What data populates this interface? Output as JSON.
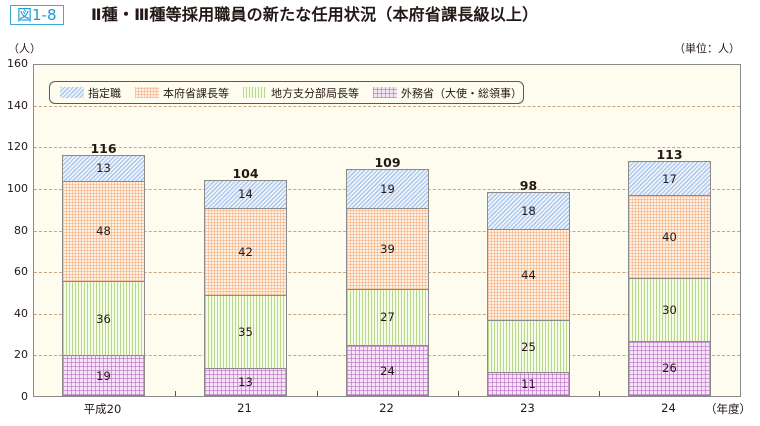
{
  "figure": {
    "label": "図1-8",
    "title": "Ⅱ種・Ⅲ種等採用職員の新たな任用状況（本府省課長級以上）",
    "y_unit": "（人）",
    "unit_note": "（単位：人）",
    "x_unit": "（年度）"
  },
  "colors": {
    "label_border": "#3fa9d8",
    "plot_bg": "#fefcee",
    "gridline": "#c8a780",
    "designated": "#a9c6ea",
    "ministry_director": "#f4aa78",
    "regional_branch": "#b8d98a",
    "foreign_affairs": "#be78c8"
  },
  "chart_data": {
    "type": "bar",
    "stacked": true,
    "title": "Ⅱ種・Ⅲ種等採用職員の新たな任用状況（本府省課長級以上）",
    "xlabel": "（年度）",
    "ylabel": "（人）",
    "unit": "（単位：人）",
    "ylim": [
      0,
      160
    ],
    "yticks": [
      0,
      20,
      40,
      60,
      80,
      100,
      120,
      140,
      160
    ],
    "grid": true,
    "legend_position": "top-left inside",
    "categories": [
      "平成20",
      "21",
      "22",
      "23",
      "24"
    ],
    "series": [
      {
        "name": "外務省（大使・総領事）",
        "values": [
          19,
          13,
          24,
          11,
          26
        ]
      },
      {
        "name": "地方支分部局長等",
        "values": [
          36,
          35,
          27,
          25,
          30
        ]
      },
      {
        "name": "本府省課長等",
        "values": [
          48,
          42,
          39,
          44,
          40
        ]
      },
      {
        "name": "指定職",
        "values": [
          13,
          14,
          19,
          18,
          17
        ]
      }
    ],
    "totals": [
      116,
      104,
      109,
      98,
      113
    ]
  },
  "legend": [
    {
      "label": "指定職",
      "pattern": "pat-blue"
    },
    {
      "label": "本府省課長等",
      "pattern": "pat-orange"
    },
    {
      "label": "地方支分部局長等",
      "pattern": "pat-green"
    },
    {
      "label": "外務省（大使・総領事）",
      "pattern": "pat-purple"
    }
  ]
}
